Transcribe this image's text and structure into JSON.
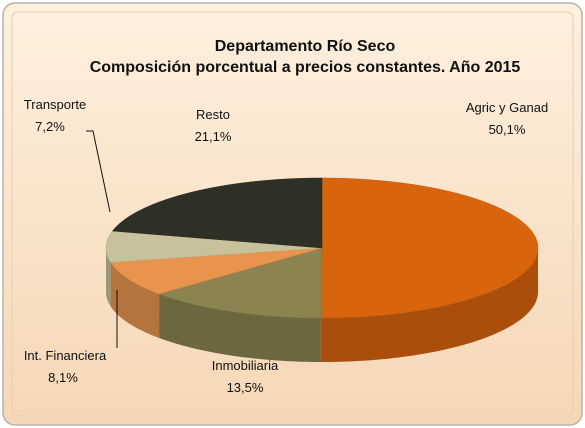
{
  "chart_data": {
    "type": "pie3d",
    "title": "Departamento Río Seco",
    "subtitle": "Composición porcentual a precios constantes. Año 2015",
    "categories": [
      "Agric y Ganad",
      "Inmobiliaria",
      "Int. Financiera",
      "Transporte",
      "Resto"
    ],
    "values": [
      50.1,
      13.5,
      8.1,
      7.2,
      21.1
    ],
    "value_labels": [
      "50,1%",
      "13,5%",
      "8,1%",
      "7,2%",
      "21,1%"
    ],
    "colors": [
      "#d9640e",
      "#8b8450",
      "#e8944f",
      "#c7c29c",
      "#2f3025"
    ]
  }
}
